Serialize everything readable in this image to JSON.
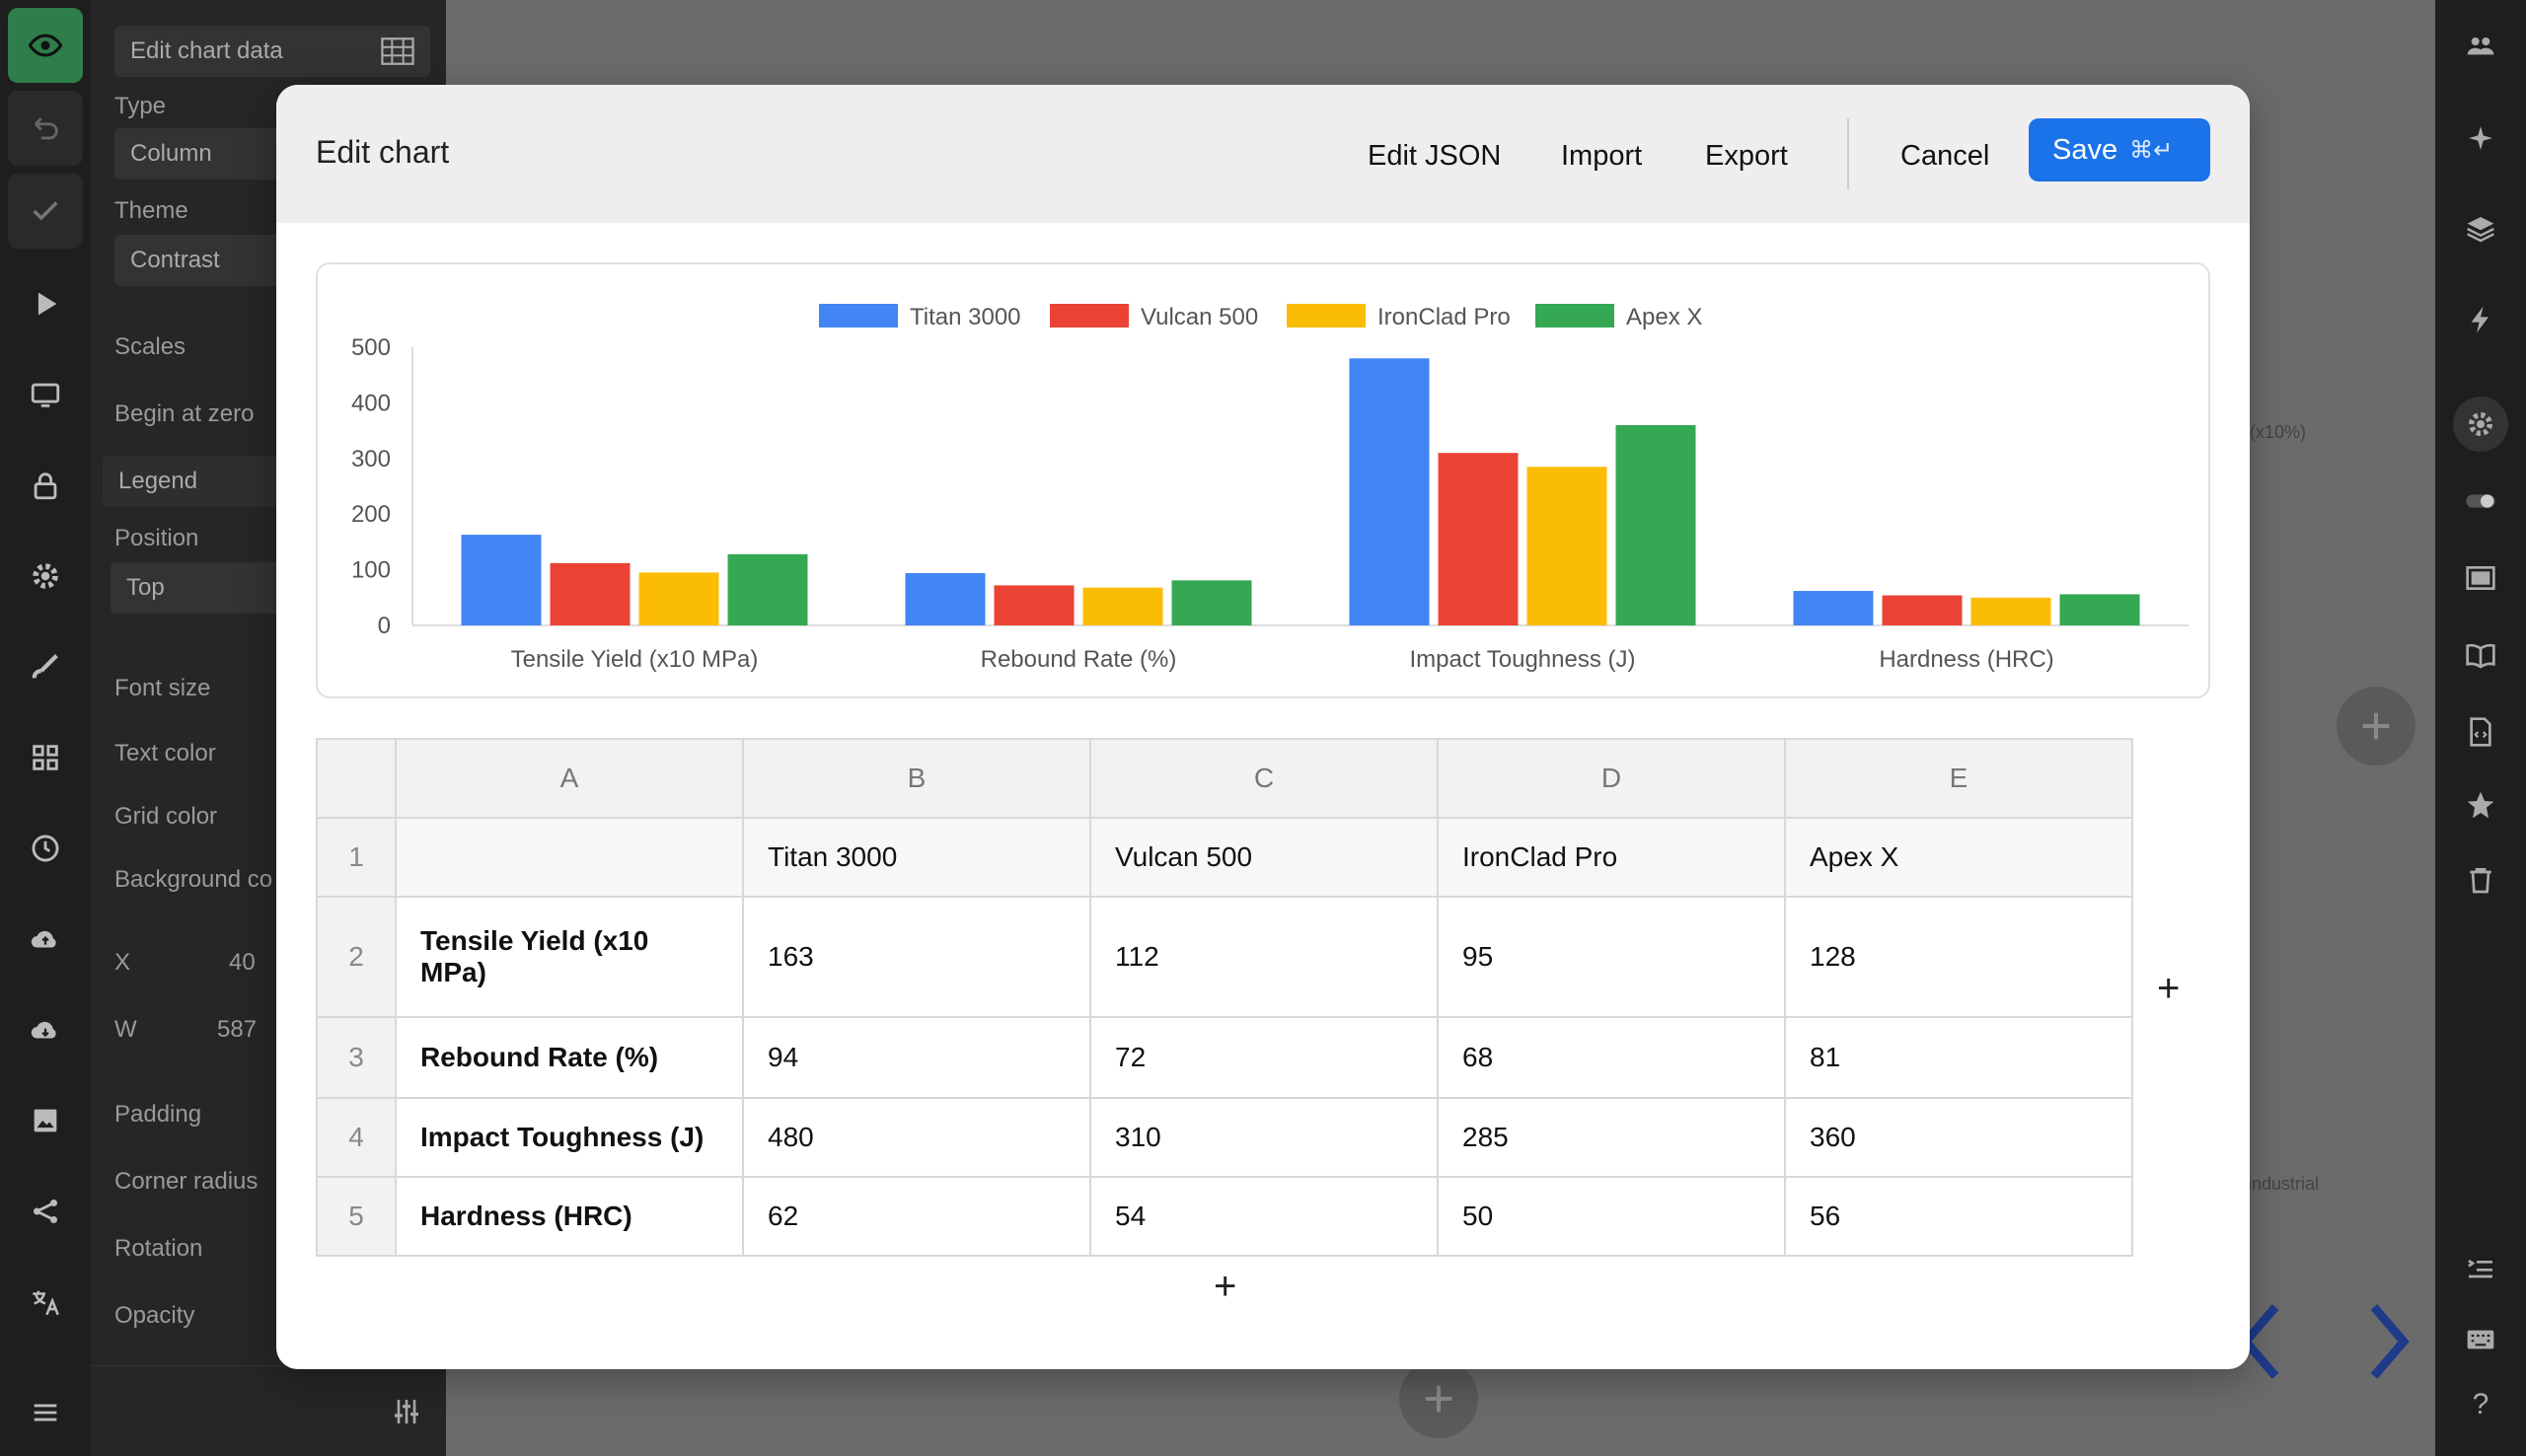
{
  "left_rail": {
    "icons": [
      "eye-icon",
      "undo-icon",
      "check-icon",
      "play-icon",
      "monitor-icon",
      "lock-icon",
      "gear-icon",
      "brush-icon",
      "grid-icon",
      "clock-icon",
      "cloud-upload-icon",
      "cloud-download-icon",
      "image-icon",
      "share-icon",
      "translate-icon",
      "menu-icon"
    ]
  },
  "panel": {
    "edit_chart_data_label": "Edit chart data",
    "type_label": "Type",
    "type_value": "Column",
    "theme_label": "Theme",
    "theme_value": "Contrast",
    "scales_label": "Scales",
    "begin_at_zero_label": "Begin at zero",
    "legend_label": "Legend",
    "position_label": "Position",
    "position_value": "Top",
    "font_size_label": "Font size",
    "text_color_label": "Text color",
    "grid_color_label": "Grid color",
    "background_label": "Background co",
    "x_label": "X",
    "x_value": "40",
    "w_label": "W",
    "w_value": "587",
    "padding_label": "Padding",
    "corner_radius_label": "Corner radius",
    "rotation_label": "Rotation",
    "opacity_label": "Opacity"
  },
  "background": {
    "slide_note_1": "(x10%)",
    "slide_note_2": "industrial"
  },
  "modal": {
    "title": "Edit chart",
    "edit_json_label": "Edit JSON",
    "import_label": "Import",
    "export_label": "Export",
    "cancel_label": "Cancel",
    "save_label": "Save",
    "save_shortcut": "⌘↵"
  },
  "chart_data": {
    "type": "bar",
    "categories": [
      "Tensile Yield (x10 MPa)",
      "Rebound Rate (%)",
      "Impact Toughness (J)",
      "Hardness (HRC)"
    ],
    "series": [
      {
        "name": "Titan 3000",
        "values": [
          163,
          94,
          480,
          62
        ],
        "color": "#4285f4"
      },
      {
        "name": "Vulcan 500",
        "values": [
          112,
          72,
          310,
          54
        ],
        "color": "#ea4335"
      },
      {
        "name": "IronClad Pro",
        "values": [
          95,
          68,
          285,
          50
        ],
        "color": "#fbbc04"
      },
      {
        "name": "Apex X",
        "values": [
          128,
          81,
          360,
          56
        ],
        "color": "#34a853"
      }
    ],
    "ylim": [
      0,
      500
    ],
    "yticks": [
      "0",
      "100",
      "200",
      "300",
      "400",
      "500"
    ],
    "legend": "top",
    "grid": false
  },
  "sheet": {
    "col_headers": [
      "A",
      "B",
      "C",
      "D",
      "E"
    ],
    "rows": [
      {
        "num": "1",
        "cells": [
          "",
          "Titan 3000",
          "Vulcan 500",
          "IronClad Pro",
          "Apex X"
        ]
      },
      {
        "num": "2",
        "cells": [
          "Tensile Yield (x10 MPa)",
          "163",
          "112",
          "95",
          "128"
        ]
      },
      {
        "num": "3",
        "cells": [
          "Rebound Rate (%)",
          "94",
          "72",
          "68",
          "81"
        ]
      },
      {
        "num": "4",
        "cells": [
          "Impact Toughness (J)",
          "480",
          "310",
          "285",
          "360"
        ]
      },
      {
        "num": "5",
        "cells": [
          "Hardness (HRC)",
          "62",
          "54",
          "50",
          "56"
        ]
      }
    ],
    "add_column_label": "+",
    "add_row_label": "+"
  }
}
